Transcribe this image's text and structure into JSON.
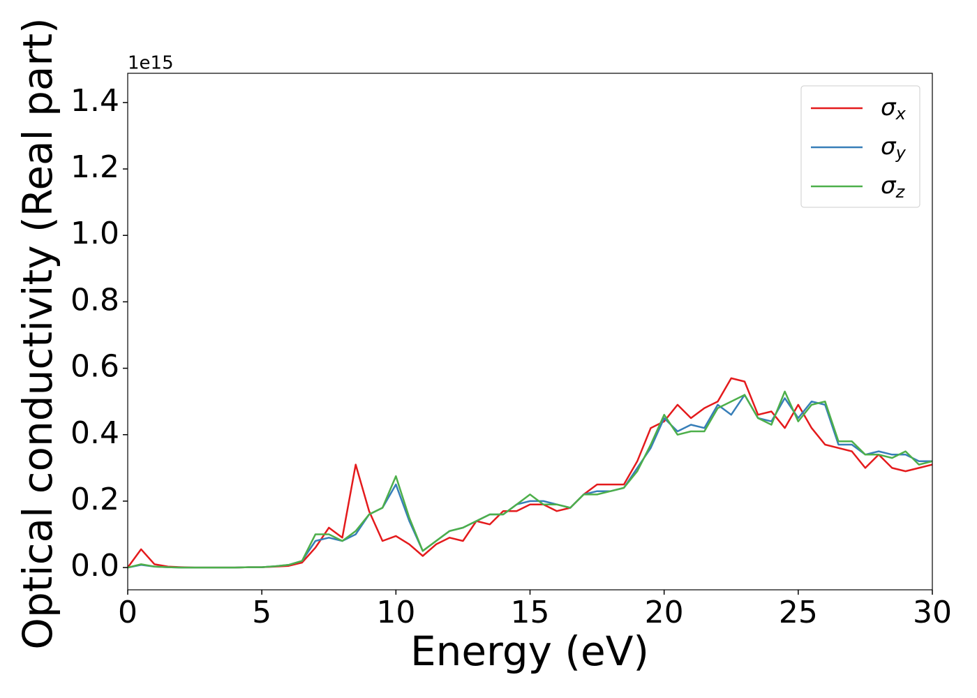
{
  "chart_data": {
    "type": "line",
    "xlabel": "Energy (eV)",
    "ylabel": "Optical conductivity (Real part)",
    "offset_label": "1e15",
    "x": [
      0,
      0.5,
      1,
      1.5,
      2,
      2.5,
      3,
      3.5,
      4,
      4.5,
      5,
      5.5,
      6,
      6.5,
      7,
      7.5,
      8,
      8.5,
      9,
      9.5,
      10,
      10.5,
      11,
      11.5,
      12,
      12.5,
      13,
      13.5,
      14,
      14.5,
      15,
      15.5,
      16,
      16.5,
      17,
      17.5,
      18,
      18.5,
      19,
      19.5,
      20,
      20.5,
      21,
      21.5,
      22,
      22.5,
      23,
      23.5,
      24,
      24.5,
      25,
      25.5,
      26,
      26.5,
      27,
      27.5,
      28,
      28.5,
      29,
      29.5,
      30
    ],
    "series": [
      {
        "name": "σx",
        "color": "#e41a1c",
        "values": [
          0,
          0.055,
          0.01,
          0.003,
          0.001,
          0,
          0,
          0,
          0,
          0.001,
          0.001,
          0.003,
          0.005,
          0.015,
          0.06,
          0.12,
          0.09,
          0.31,
          0.17,
          0.08,
          0.095,
          0.07,
          0.035,
          0.07,
          0.09,
          0.08,
          0.14,
          0.13,
          0.17,
          0.17,
          0.19,
          0.19,
          0.17,
          0.18,
          0.22,
          0.25,
          0.25,
          0.25,
          0.32,
          0.42,
          0.44,
          0.49,
          0.45,
          0.48,
          0.5,
          0.57,
          0.56,
          0.46,
          0.47,
          0.42,
          0.49,
          0.42,
          0.37,
          0.36,
          0.35,
          0.3,
          0.34,
          0.3,
          0.29,
          0.3,
          0.31
        ]
      },
      {
        "name": "σy",
        "color": "#377eb8",
        "values": [
          0,
          0.008,
          0.003,
          0.001,
          0,
          0,
          0,
          0,
          0,
          0.001,
          0.001,
          0.004,
          0.008,
          0.02,
          0.08,
          0.09,
          0.08,
          0.1,
          0.16,
          0.18,
          0.25,
          0.14,
          0.05,
          0.08,
          0.11,
          0.12,
          0.14,
          0.16,
          0.16,
          0.19,
          0.2,
          0.2,
          0.19,
          0.18,
          0.22,
          0.23,
          0.23,
          0.24,
          0.3,
          0.36,
          0.45,
          0.41,
          0.43,
          0.42,
          0.49,
          0.46,
          0.52,
          0.45,
          0.44,
          0.51,
          0.45,
          0.5,
          0.49,
          0.37,
          0.37,
          0.34,
          0.35,
          0.34,
          0.34,
          0.32,
          0.32
        ]
      },
      {
        "name": "σz",
        "color": "#4daf4a",
        "values": [
          0,
          0.01,
          0.003,
          0.001,
          0,
          0,
          0,
          0,
          0,
          0.001,
          0.001,
          0.004,
          0.008,
          0.02,
          0.1,
          0.1,
          0.08,
          0.11,
          0.16,
          0.18,
          0.275,
          0.15,
          0.05,
          0.08,
          0.11,
          0.12,
          0.14,
          0.16,
          0.16,
          0.19,
          0.22,
          0.19,
          0.19,
          0.18,
          0.22,
          0.22,
          0.23,
          0.24,
          0.29,
          0.37,
          0.46,
          0.4,
          0.41,
          0.41,
          0.48,
          0.5,
          0.52,
          0.45,
          0.43,
          0.53,
          0.44,
          0.49,
          0.5,
          0.38,
          0.38,
          0.34,
          0.34,
          0.33,
          0.35,
          0.31,
          0.32
        ]
      }
    ],
    "xlim": [
      0,
      30
    ],
    "xticks": [
      0,
      5,
      10,
      15,
      20,
      25,
      30
    ],
    "ylim": [
      -0.067,
      1.488
    ],
    "yticks": [
      {
        "value": 0,
        "label": "0.0"
      },
      0.2,
      0.4,
      0.6,
      0.8,
      {
        "value": 1,
        "label": "1.0"
      },
      1.2,
      1.4
    ],
    "legend": "upper right"
  }
}
